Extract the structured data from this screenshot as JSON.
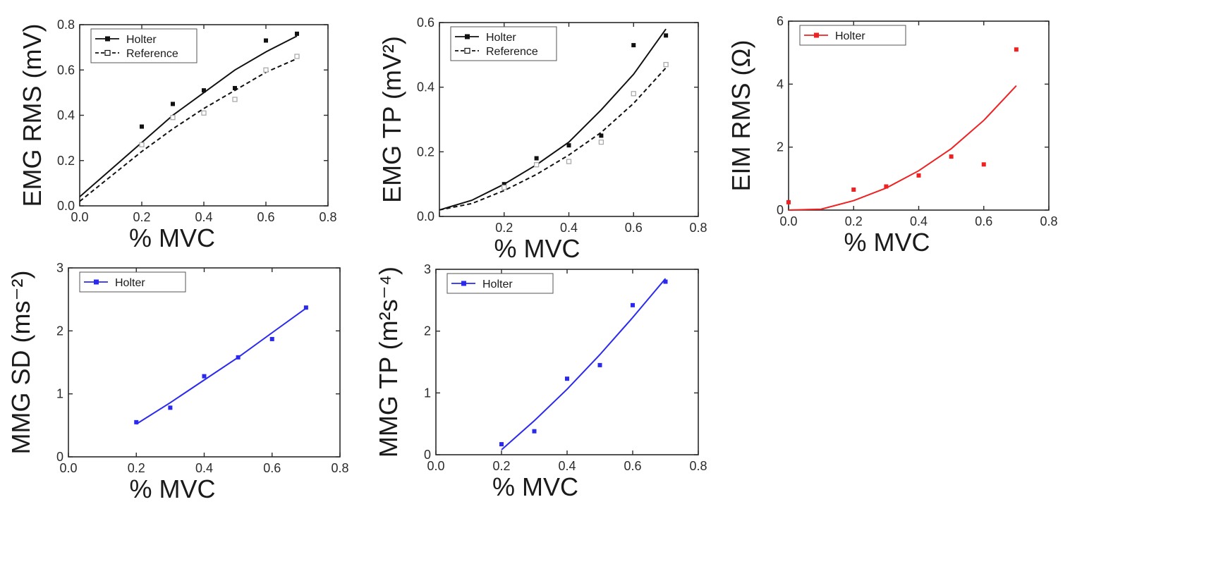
{
  "chart_data": [
    {
      "id": "emg-rms",
      "type": "scatter",
      "ylabel": "EMG RMS (mV)",
      "xlabel": "% MVC",
      "xlim": [
        0.0,
        0.8
      ],
      "ylim": [
        0.0,
        0.8
      ],
      "xticks": [
        "0.0",
        "0.2",
        "0.4",
        "0.6",
        "0.8"
      ],
      "yticks": [
        "0.0",
        "0.2",
        "0.4",
        "0.6",
        "0.8"
      ],
      "legend_position": "top-left",
      "series": [
        {
          "name": "Holter",
          "color": "#111111",
          "marker": "filled-square",
          "line": "solid",
          "x": [
            0.2,
            0.3,
            0.4,
            0.5,
            0.6,
            0.7
          ],
          "y": [
            0.35,
            0.45,
            0.51,
            0.52,
            0.73,
            0.76
          ],
          "fit_x": [
            0.0,
            0.1,
            0.2,
            0.3,
            0.4,
            0.5,
            0.6,
            0.7
          ],
          "fit_y": [
            0.04,
            0.16,
            0.28,
            0.4,
            0.5,
            0.6,
            0.68,
            0.75
          ]
        },
        {
          "name": "Reference",
          "color": "#111111",
          "marker": "open-square",
          "marker_color": "#aaaaaa",
          "line": "dashed",
          "x": [
            0.2,
            0.3,
            0.4,
            0.5,
            0.6,
            0.7
          ],
          "y": [
            0.27,
            0.39,
            0.41,
            0.47,
            0.6,
            0.66
          ],
          "fit_x": [
            0.0,
            0.1,
            0.2,
            0.3,
            0.4,
            0.5,
            0.6,
            0.7
          ],
          "fit_y": [
            0.02,
            0.13,
            0.24,
            0.34,
            0.43,
            0.51,
            0.59,
            0.65
          ]
        }
      ]
    },
    {
      "id": "emg-tp",
      "type": "scatter",
      "ylabel": "EMG TP (mV²)",
      "xlabel": "% MVC",
      "xlim": [
        0.0,
        0.8
      ],
      "ylim": [
        0.0,
        0.6
      ],
      "xticks": [
        "",
        "0.2",
        "0.4",
        "0.6",
        "0.8"
      ],
      "yticks": [
        "0.0",
        "0.2",
        "0.4",
        "0.6"
      ],
      "legend_position": "top-left",
      "series": [
        {
          "name": "Holter",
          "color": "#111111",
          "marker": "filled-square",
          "line": "solid",
          "x": [
            0.2,
            0.3,
            0.4,
            0.5,
            0.6,
            0.7
          ],
          "y": [
            0.1,
            0.18,
            0.22,
            0.25,
            0.53,
            0.56
          ],
          "fit_x": [
            0.0,
            0.1,
            0.2,
            0.3,
            0.4,
            0.5,
            0.6,
            0.7
          ],
          "fit_y": [
            0.02,
            0.05,
            0.1,
            0.16,
            0.23,
            0.33,
            0.44,
            0.58
          ]
        },
        {
          "name": "Reference",
          "color": "#111111",
          "marker": "open-square",
          "marker_color": "#aaaaaa",
          "line": "dashed",
          "x": [
            0.2,
            0.3,
            0.4,
            0.5,
            0.6,
            0.7
          ],
          "y": [
            0.09,
            0.16,
            0.17,
            0.23,
            0.38,
            0.47
          ],
          "fit_x": [
            0.0,
            0.1,
            0.2,
            0.3,
            0.4,
            0.5,
            0.6,
            0.7
          ],
          "fit_y": [
            0.02,
            0.04,
            0.08,
            0.13,
            0.19,
            0.26,
            0.35,
            0.46
          ]
        }
      ]
    },
    {
      "id": "eim-rms",
      "type": "scatter",
      "ylabel": "EIM RMS (Ω)",
      "xlabel": "% MVC",
      "xlim": [
        0.0,
        0.8
      ],
      "ylim": [
        0,
        6
      ],
      "xticks": [
        "0.0",
        "0.2",
        "0.4",
        "0.6",
        "0.8"
      ],
      "yticks": [
        "0",
        "2",
        "4",
        "6"
      ],
      "legend_position": "top-left",
      "series": [
        {
          "name": "Holter",
          "color": "#ee2222",
          "marker": "filled-square",
          "line": "solid",
          "x": [
            0.0,
            0.2,
            0.3,
            0.4,
            0.5,
            0.6,
            0.7
          ],
          "y": [
            0.25,
            0.65,
            0.75,
            1.1,
            1.7,
            1.45,
            5.1
          ],
          "fit_x": [
            0.0,
            0.1,
            0.2,
            0.3,
            0.4,
            0.5,
            0.6,
            0.7
          ],
          "fit_y": [
            0.0,
            0.03,
            0.3,
            0.7,
            1.25,
            1.95,
            2.85,
            3.95
          ]
        }
      ]
    },
    {
      "id": "mmg-sd",
      "type": "scatter",
      "ylabel": "MMG SD (ms⁻²)",
      "xlabel": "% MVC",
      "xlim": [
        0.0,
        0.8
      ],
      "ylim": [
        0,
        3
      ],
      "xticks": [
        "0.0",
        "0.2",
        "0.4",
        "0.6",
        "0.8"
      ],
      "yticks": [
        "0",
        "1",
        "2",
        "3"
      ],
      "legend_position": "top-left",
      "series": [
        {
          "name": "Holter",
          "color": "#2a2aee",
          "marker": "filled-square",
          "line": "solid",
          "x": [
            0.2,
            0.3,
            0.4,
            0.5,
            0.6,
            0.7
          ],
          "y": [
            0.55,
            0.78,
            1.28,
            1.58,
            1.87,
            2.37
          ],
          "fit_x": [
            0.2,
            0.3,
            0.4,
            0.5,
            0.6,
            0.7
          ],
          "fit_y": [
            0.52,
            0.86,
            1.22,
            1.58,
            1.97,
            2.36
          ]
        }
      ]
    },
    {
      "id": "mmg-tp",
      "type": "scatter",
      "ylabel": "MMG TP (m²s⁻⁴)",
      "xlabel": "% MVC",
      "xlim": [
        0.0,
        0.8
      ],
      "ylim": [
        0,
        3
      ],
      "xticks": [
        "0.0",
        "0.2",
        "0.4",
        "0.6",
        "0.8"
      ],
      "yticks": [
        "0",
        "1",
        "2",
        "3"
      ],
      "legend_position": "top-left",
      "series": [
        {
          "name": "Holter",
          "color": "#2a2aee",
          "marker": "filled-square",
          "line": "solid",
          "x": [
            0.2,
            0.3,
            0.4,
            0.5,
            0.6,
            0.7
          ],
          "y": [
            0.17,
            0.38,
            1.23,
            1.45,
            2.42,
            2.8
          ],
          "fit_x": [
            0.2,
            0.3,
            0.4,
            0.5,
            0.6,
            0.7
          ],
          "fit_y": [
            0.08,
            0.55,
            1.06,
            1.62,
            2.22,
            2.85
          ]
        }
      ]
    }
  ]
}
